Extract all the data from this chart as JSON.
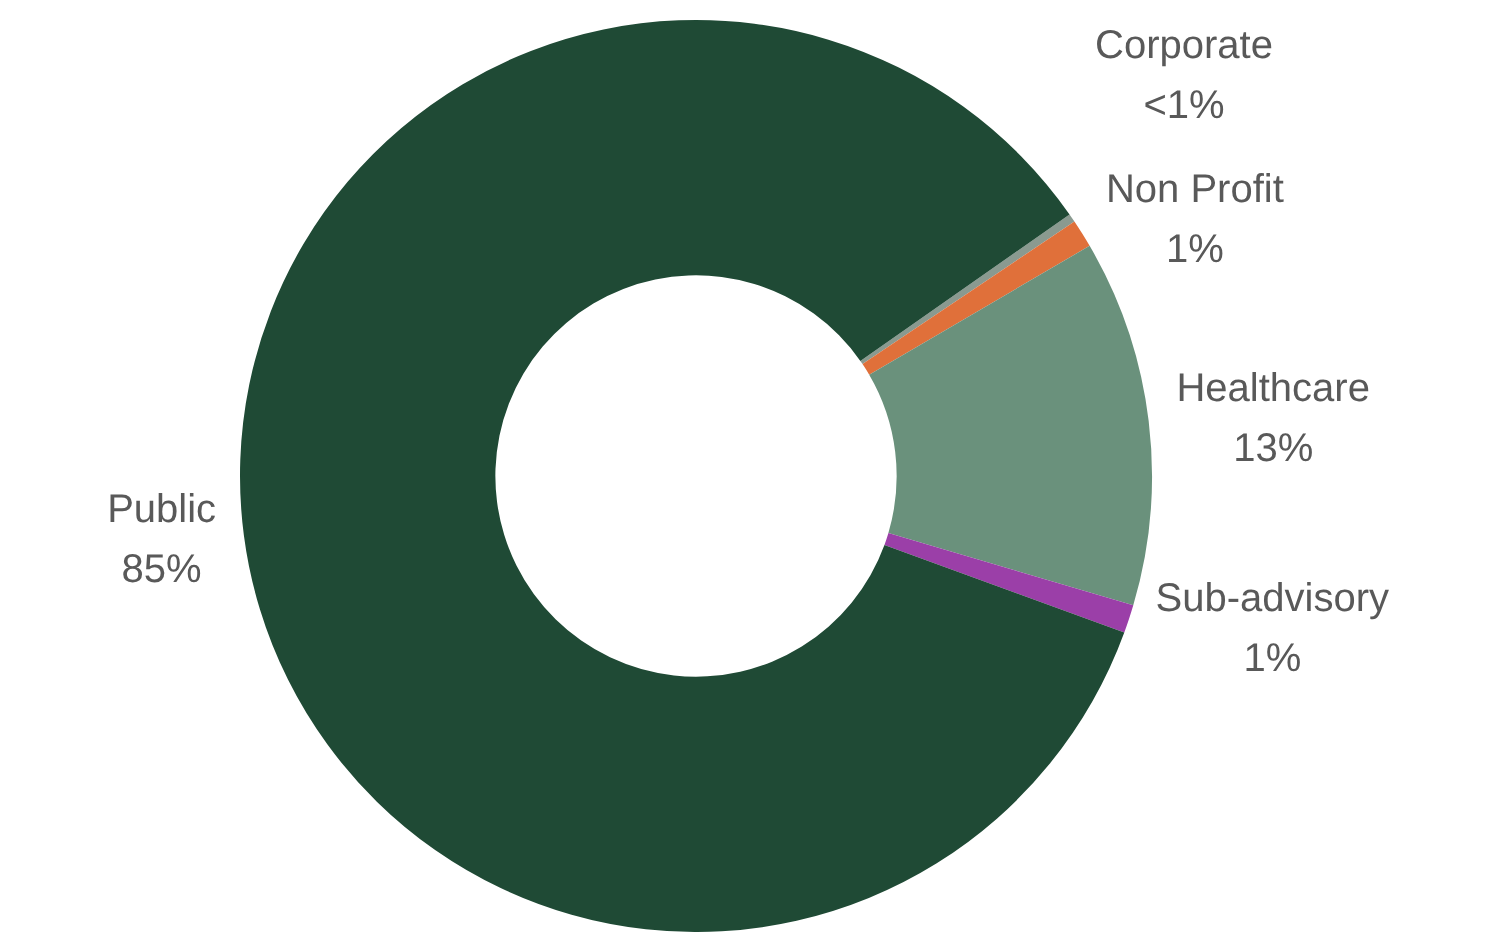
{
  "chart_data": {
    "type": "donut",
    "categories": [
      "Corporate",
      "Non Profit",
      "Healthcare",
      "Sub-advisory",
      "Public"
    ],
    "values": [
      0.3,
      1,
      13,
      1,
      84.7
    ],
    "colors": [
      "#8a9a90",
      "#e0703a",
      "#6a917c",
      "#9b3fa8",
      "#1f4a35"
    ],
    "value_labels": [
      "<1%",
      "1%",
      "13%",
      "1%",
      "85%"
    ]
  }
}
